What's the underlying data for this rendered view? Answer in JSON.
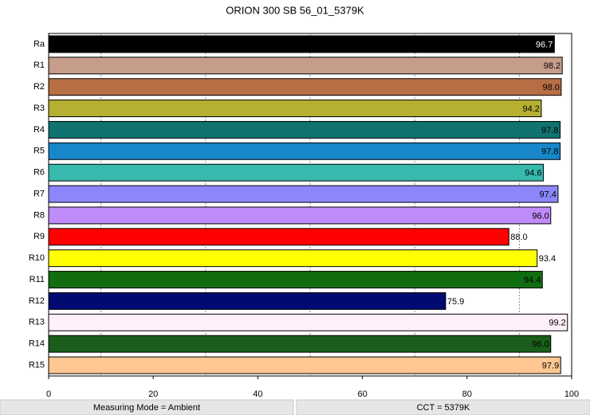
{
  "chart_data": {
    "type": "barh",
    "title": "ORION 300 SB 56_01_5379K",
    "categories": [
      "Ra",
      "R1",
      "R2",
      "R3",
      "R4",
      "R5",
      "R6",
      "R7",
      "R8",
      "R9",
      "R10",
      "R11",
      "R12",
      "R13",
      "R14",
      "R15"
    ],
    "values": [
      96.7,
      98.2,
      98.0,
      94.2,
      97.8,
      97.8,
      94.6,
      97.4,
      96.0,
      88.0,
      93.4,
      94.4,
      75.9,
      99.2,
      96.0,
      97.9
    ],
    "value_labels": [
      "96.7",
      "98.2",
      "98.0",
      "94.2",
      "97.8",
      "97.8",
      "94.6",
      "97.4",
      "96.0",
      "88.0",
      "93.4",
      "94.4",
      "75.9",
      "99.2",
      "96.0",
      "97.9"
    ],
    "colors": [
      "#000000",
      "#c69c8a",
      "#b86e44",
      "#b5b031",
      "#107370",
      "#1787c9",
      "#37b9ad",
      "#8b87fb",
      "#bf8bf9",
      "#ff0000",
      "#ffff00",
      "#106e10",
      "#000a70",
      "#fff0fa",
      "#1b5e1b",
      "#ffc792"
    ],
    "xlim": [
      0,
      100
    ],
    "xticks": [
      0,
      20,
      40,
      60,
      80,
      100
    ],
    "xminorticks": [
      10,
      30,
      50,
      70,
      90
    ],
    "grid": true
  },
  "footer": [
    "Measuring Mode = Ambient",
    "CCT = 5379K"
  ]
}
